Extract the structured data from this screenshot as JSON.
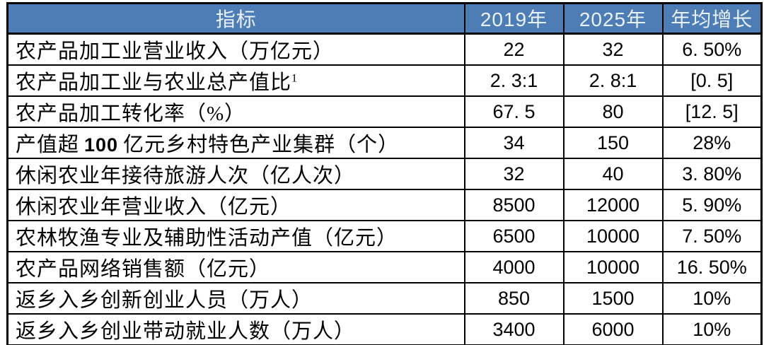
{
  "colors": {
    "header_bg": "#4e7db6",
    "header_text": "#e9f1fa",
    "border": "#000000",
    "row_bg": "#ffffff"
  },
  "chart_data": {
    "type": "table",
    "columns": [
      "指标",
      "2019年",
      "2025年",
      "年均增长"
    ],
    "rows": [
      {
        "indicator": "农产品加工业营业收入（万亿元）",
        "y2019": "22",
        "y2025": "32",
        "growth": "6. 50%"
      },
      {
        "indicator": "农产品加工业与农业总产值比",
        "sup": "1",
        "y2019": "2. 3:1",
        "y2025": "2. 8:1",
        "growth": "[0. 5]"
      },
      {
        "indicator": "农产品加工转化率（%）",
        "y2019": "67. 5",
        "y2025": "80",
        "growth": "[12. 5]"
      },
      {
        "pre": "产值超",
        "bold": "100",
        "post": "亿元乡村特色产业集群（个）",
        "y2019": "34",
        "y2025": "150",
        "growth": "28%"
      },
      {
        "indicator": "休闲农业年接待旅游人次（亿人次）",
        "y2019": "32",
        "y2025": "40",
        "growth": "3. 80%"
      },
      {
        "indicator": "休闲农业年营业收入（亿元）",
        "y2019": "8500",
        "y2025": "12000",
        "growth": "5. 90%"
      },
      {
        "indicator": "农林牧渔专业及辅助性活动产值（亿元）",
        "y2019": "6500",
        "y2025": "10000",
        "growth": "7. 50%"
      },
      {
        "indicator": "农产品网络销售额（亿元）",
        "y2019": "4000",
        "y2025": "10000",
        "growth": "16. 50%"
      },
      {
        "indicator": "返乡入乡创新创业人员（万人）",
        "y2019": "850",
        "y2025": "1500",
        "growth": "10%"
      },
      {
        "indicator": "返乡入乡创业带动就业人数（万人）",
        "y2019": "3400",
        "y2025": "6000",
        "growth": "10%"
      }
    ]
  }
}
